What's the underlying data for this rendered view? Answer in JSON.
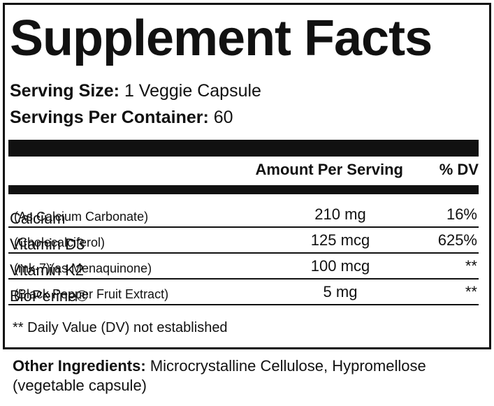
{
  "title": "Supplement Facts",
  "serving_size": {
    "label": "Serving Size:",
    "value": "1 Veggie Capsule"
  },
  "servings_per_container": {
    "label": "Servings Per Container:",
    "value": "60"
  },
  "header": {
    "amount": "Amount Per Serving",
    "dv": "% DV"
  },
  "rows": [
    {
      "name": "Calcium",
      "detail": "(As Calcium Carbonate)",
      "amount": "210 mg",
      "dv": "16%"
    },
    {
      "name": "Vitamin D3",
      "detail": "(Cholecalciferol)",
      "amount": "125 mcg",
      "dv": "625%"
    },
    {
      "name": "Vitamin K2",
      "detail": "(mk-7)(as Menaquinone)",
      "amount": "100 mcg",
      "dv": "**"
    },
    {
      "name": "BioPerine®",
      "detail": "(Black Pepper Fruit Extract)",
      "amount": "5 mg",
      "dv": "**"
    }
  ],
  "footnote": "** Daily Value (DV) not established",
  "other_ingredients": {
    "label": "Other Ingredients:",
    "text": "Microcrystalline Cellulose, Hypromellose (vegetable capsule)"
  }
}
